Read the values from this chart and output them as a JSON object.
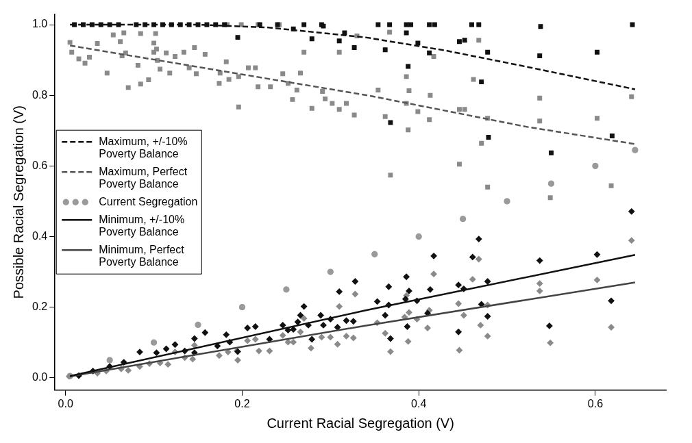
{
  "chart_data": {
    "type": "scatter",
    "xlabel": "Current Racial Segregation (V)",
    "ylabel": "Possible Racial Segregation (V)",
    "xlim": [
      -0.012,
      0.68
    ],
    "ylim": [
      -0.035,
      1.03
    ],
    "xticks": [
      {
        "value": 0,
        "label": "0.0"
      },
      {
        "value": 0.2,
        "label": "0.2"
      },
      {
        "value": 0.4,
        "label": "0.4"
      },
      {
        "value": 0.6,
        "label": "0.6"
      }
    ],
    "yticks": [
      {
        "value": 0,
        "label": "0.0"
      },
      {
        "value": 0.2,
        "label": "0.2"
      },
      {
        "value": 0.4,
        "label": "0.4"
      },
      {
        "value": 0.6,
        "label": "0.6"
      },
      {
        "value": 0.8,
        "label": "0.8"
      },
      {
        "value": 1,
        "label": "1.0"
      }
    ],
    "grid": false,
    "legend": "left",
    "series": [
      {
        "color": "#111111",
        "marker": "square",
        "x": [
          0.01,
          0.02,
          0.03,
          0.04,
          0.05,
          0.06,
          0.08,
          0.09,
          0.1,
          0.11,
          0.12,
          0.13,
          0.14,
          0.15,
          0.16,
          0.17,
          0.18,
          0.22,
          0.24,
          0.27,
          0.29,
          0.354,
          0.367,
          0.386,
          0.391,
          0.412,
          0.418,
          0.46,
          0.468,
          0.538,
          0.642,
          0.386,
          0.399,
          0.362,
          0.412,
          0.446,
          0.452,
          0.478,
          0.537,
          0.602,
          0.388,
          0.471,
          0.368,
          0.619,
          0.55,
          0.479,
          0.195,
          0.279,
          0.31,
          0.327,
          0.258,
          0.292,
          0.316
        ],
        "values": [
          1,
          1,
          1,
          1,
          1,
          1,
          1,
          1,
          1,
          1,
          1,
          1,
          1,
          1,
          1,
          1,
          1,
          1,
          1,
          1,
          1,
          1,
          1,
          1,
          1,
          1,
          1,
          1,
          1,
          0.995,
          1,
          0.977,
          0.948,
          0.929,
          0.92,
          0.952,
          0.956,
          0.922,
          0.912,
          0.922,
          0.882,
          0.838,
          0.723,
          0.685,
          0.637,
          0.681,
          0.964,
          0.96,
          0.954,
          0.935,
          0.988,
          0.996,
          0.977
        ]
      },
      {
        "color": "#8a8a8a",
        "marker": "square",
        "x": [
          0.005,
          0.007,
          0.015,
          0.022,
          0.027,
          0.036,
          0.047,
          0.054,
          0.062,
          0.066,
          0.064,
          0.068,
          0.071,
          0.082,
          0.085,
          0.085,
          0.094,
          0.102,
          0.1,
          0.103,
          0.1,
          0.104,
          0.107,
          0.114,
          0.118,
          0.124,
          0.134,
          0.14,
          0.146,
          0.148,
          0.158,
          0.174,
          0.175,
          0.182,
          0.185,
          0.196,
          0.196,
          0.207,
          0.215,
          0.218,
          0.232,
          0.246,
          0.252,
          0.262,
          0.266,
          0.27,
          0.257,
          0.279,
          0.291,
          0.294,
          0.302,
          0.31,
          0.318,
          0.327,
          0.31,
          0.33,
          0.183,
          0.199,
          0.218,
          0.242,
          0.367,
          0.468,
          0.417,
          0.386,
          0.462,
          0.354,
          0.389,
          0.413,
          0.537,
          0.641,
          0.386,
          0.399,
          0.362,
          0.412,
          0.452,
          0.446,
          0.478,
          0.537,
          0.602,
          0.388,
          0.471,
          0.368,
          0.446,
          0.478,
          0.549,
          0.618
        ],
        "values": [
          0.95,
          0.922,
          0.903,
          0.891,
          0.908,
          0.947,
          0.863,
          0.971,
          0.952,
          0.977,
          0.912,
          0.92,
          0.822,
          0.885,
          0.975,
          0.832,
          0.844,
          0.975,
          0.948,
          0.931,
          0.922,
          0.899,
          0.874,
          0.92,
          0.863,
          0.91,
          0.922,
          0.878,
          0.935,
          0.861,
          0.916,
          0.834,
          0.863,
          0.895,
          0.845,
          0.853,
          0.767,
          0.878,
          0.878,
          0.824,
          0.824,
          0.861,
          0.834,
          0.815,
          0.863,
          0.922,
          0.788,
          0.763,
          0.811,
          0.79,
          0.777,
          0.76,
          0.777,
          0.744,
          0.922,
          0.968,
          1,
          1,
          1,
          1,
          0.979,
          0.956,
          0.91,
          0.853,
          0.845,
          0.815,
          0.813,
          0.8,
          0.792,
          0.796,
          0.777,
          0.754,
          0.74,
          0.731,
          0.76,
          0.76,
          0.735,
          0.727,
          0.735,
          0.702,
          0.664,
          0.574,
          0.605,
          0.54,
          0.51,
          0.544
        ]
      },
      {
        "color": "#111111",
        "marker": "diamond",
        "x": [
          0.328,
          0.31,
          0.27,
          0.266,
          0.289,
          0.3,
          0.318,
          0.326,
          0.246,
          0.252,
          0.258,
          0.275,
          0.292,
          0.308,
          0.206,
          0.215,
          0.158,
          0.182,
          0.146,
          0.124,
          0.114,
          0.186,
          0.172,
          0.195,
          0.231,
          0.279,
          0.103,
          0.084,
          0.066,
          0.05,
          0.031,
          0.015,
          0.135,
          0.146,
          0.263,
          0.641,
          0.468,
          0.417,
          0.461,
          0.537,
          0.602,
          0.386,
          0.366,
          0.389,
          0.413,
          0.445,
          0.478,
          0.451,
          0.353,
          0.366,
          0.385,
          0.398,
          0.362,
          0.41,
          0.471,
          0.478,
          0.387,
          0.368,
          0.445,
          0.548,
          0.618
        ],
        "values": [
          0.273,
          0.244,
          0.202,
          0.177,
          0.177,
          0.166,
          0.162,
          0.16,
          0.149,
          0.135,
          0.137,
          0.149,
          0.149,
          0.143,
          0.141,
          0.145,
          0.128,
          0.122,
          0.111,
          0.094,
          0.082,
          0.101,
          0.09,
          0.074,
          0.109,
          0.109,
          0.071,
          0.073,
          0.044,
          0.032,
          0.019,
          0.006,
          0.076,
          0.071,
          0.158,
          0.471,
          0.393,
          0.345,
          0.342,
          0.332,
          0.349,
          0.286,
          0.258,
          0.246,
          0.25,
          0.263,
          0.273,
          0.252,
          0.216,
          0.206,
          0.223,
          0.218,
          0.177,
          0.183,
          0.208,
          0.174,
          0.145,
          0.111,
          0.13,
          0.147,
          0.218
        ]
      },
      {
        "color": "#8a8a8a",
        "marker": "diamond",
        "x": [
          0.641,
          0.468,
          0.417,
          0.461,
          0.537,
          0.537,
          0.602,
          0.386,
          0.445,
          0.478,
          0.412,
          0.389,
          0.384,
          0.398,
          0.353,
          0.451,
          0.41,
          0.47,
          0.362,
          0.388,
          0.478,
          0.368,
          0.446,
          0.549,
          0.618,
          0.328,
          0.31,
          0.27,
          0.266,
          0.29,
          0.3,
          0.318,
          0.326,
          0.308,
          0.278,
          0.246,
          0.252,
          0.258,
          0.231,
          0.219,
          0.215,
          0.206,
          0.195,
          0.194,
          0.184,
          0.174,
          0.146,
          0.144,
          0.135,
          0.124,
          0.116,
          0.107,
          0.095,
          0.084,
          0.071,
          0.063,
          0.046,
          0.036,
          0.004
        ],
        "values": [
          0.389,
          0.336,
          0.294,
          0.279,
          0.267,
          0.246,
          0.277,
          0.233,
          0.21,
          0.206,
          0.191,
          0.185,
          0.172,
          0.166,
          0.156,
          0.177,
          0.141,
          0.149,
          0.126,
          0.103,
          0.118,
          0.074,
          0.078,
          0.099,
          0.143,
          0.237,
          0.202,
          0.168,
          0.13,
          0.115,
          0.115,
          0.118,
          0.113,
          0.095,
          0.084,
          0.12,
          0.101,
          0.101,
          0.076,
          0.076,
          0.109,
          0.105,
          0.05,
          0.076,
          0.073,
          0.063,
          0.092,
          0.053,
          0.057,
          0.073,
          0.038,
          0.042,
          0.04,
          0.032,
          0.021,
          0.025,
          0.019,
          0.013,
          0.004
        ]
      },
      {
        "name": "Maximum, +/-10% Poverty Balance",
        "type": "line",
        "color": "#111111",
        "marker": "none",
        "line_style": "dashed",
        "x": [
          0.005,
          0.15,
          0.23,
          0.34,
          0.43,
          0.52,
          0.645
        ],
        "values": [
          1,
          1,
          0.992,
          0.964,
          0.927,
          0.882,
          0.817
        ]
      },
      {
        "name": "Maximum, Perfect Poverty Balance",
        "type": "line",
        "color": "#555555",
        "marker": "none",
        "line_style": "dashed",
        "x": [
          0.005,
          0.146,
          0.346,
          0.524,
          0.645
        ],
        "values": [
          0.941,
          0.882,
          0.798,
          0.71,
          0.662
        ]
      },
      {
        "name": "Current Segregation",
        "color": "#9a9a9a",
        "marker": "circle",
        "x": [
          0.005,
          0.05,
          0.1,
          0.15,
          0.2,
          0.25,
          0.3,
          0.35,
          0.4,
          0.45,
          0.5,
          0.55,
          0.6,
          0.645
        ],
        "values": [
          0.005,
          0.05,
          0.1,
          0.15,
          0.2,
          0.25,
          0.3,
          0.35,
          0.4,
          0.45,
          0.5,
          0.55,
          0.6,
          0.645
        ]
      },
      {
        "name": "Minimum, +/-10% Poverty Balance",
        "type": "line",
        "color": "#111111",
        "marker": "none",
        "line_style": "solid",
        "x": [
          0.005,
          0.338,
          0.645
        ],
        "values": [
          0.005,
          0.19,
          0.348
        ]
      },
      {
        "name": "Minimum, Perfect Poverty Balance",
        "type": "line",
        "color": "#444444",
        "marker": "none",
        "line_style": "solid",
        "x": [
          0.005,
          0.338,
          0.645
        ],
        "values": [
          0.004,
          0.147,
          0.27
        ]
      }
    ]
  }
}
